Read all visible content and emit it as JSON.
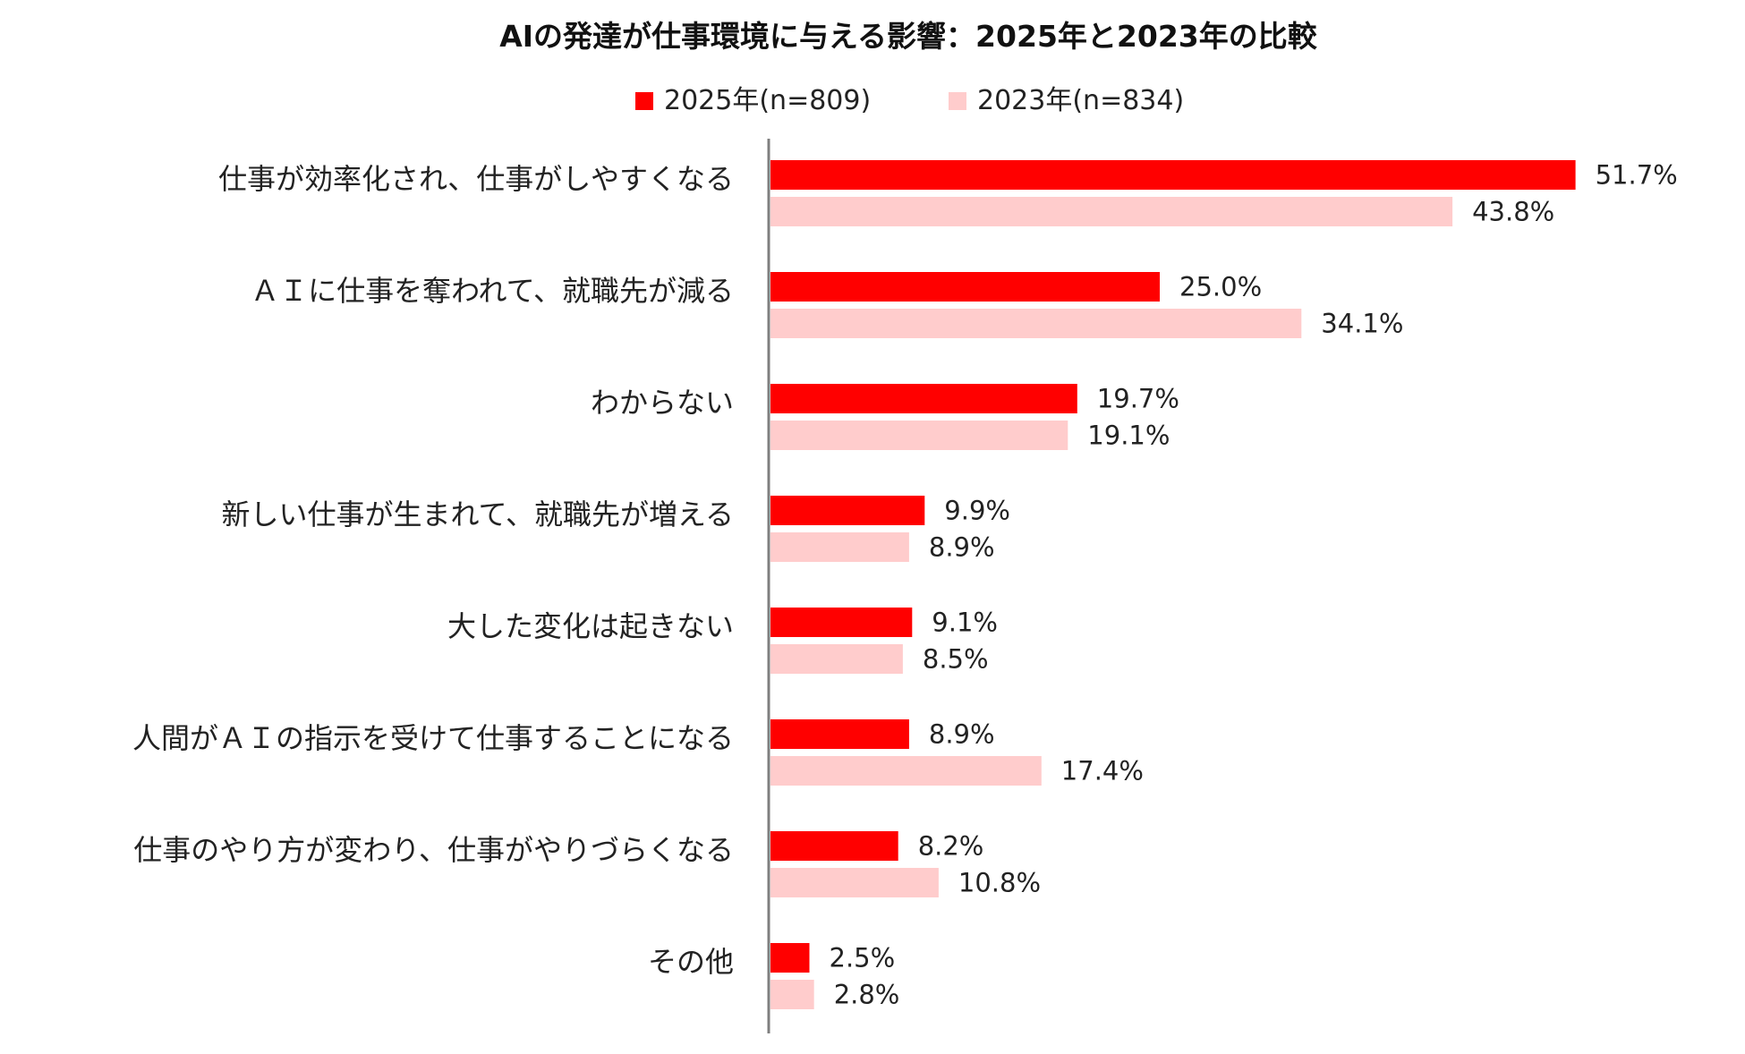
{
  "chart_data": {
    "type": "bar",
    "orientation": "horizontal",
    "title": "AIの発達が仕事環境に与える影響：2025年と2023年の比較",
    "unit": "%",
    "xlim": [
      0,
      60
    ],
    "grid": false,
    "legend_position": "top-center",
    "categories": [
      "仕事が効率化され、仕事がしやすくなる",
      "ＡＩに仕事を奪われて、就職先が減る",
      "わからない",
      "新しい仕事が生まれて、就職先が増える",
      "大した変化は起きない",
      "人間がＡＩの指示を受けて仕事することになる",
      "仕事のやり方が変わり、仕事がやりづらくなる",
      "その他"
    ],
    "series": [
      {
        "name": "2025年(n=809)",
        "color": "#ff0000",
        "values": [
          51.7,
          25.0,
          19.7,
          9.9,
          9.1,
          8.9,
          8.2,
          2.5
        ],
        "labels": [
          "51.7%",
          "25.0%",
          "19.7%",
          "9.9%",
          "9.1%",
          "8.9%",
          "8.2%",
          "2.5%"
        ]
      },
      {
        "name": "2023年(n=834)",
        "color": "#ffcccc",
        "values": [
          43.8,
          34.1,
          19.1,
          8.9,
          8.5,
          17.4,
          10.8,
          2.8
        ],
        "labels": [
          "43.8%",
          "34.1%",
          "19.1%",
          "8.9%",
          "8.5%",
          "17.4%",
          "10.8%",
          "2.8%"
        ]
      }
    ]
  }
}
